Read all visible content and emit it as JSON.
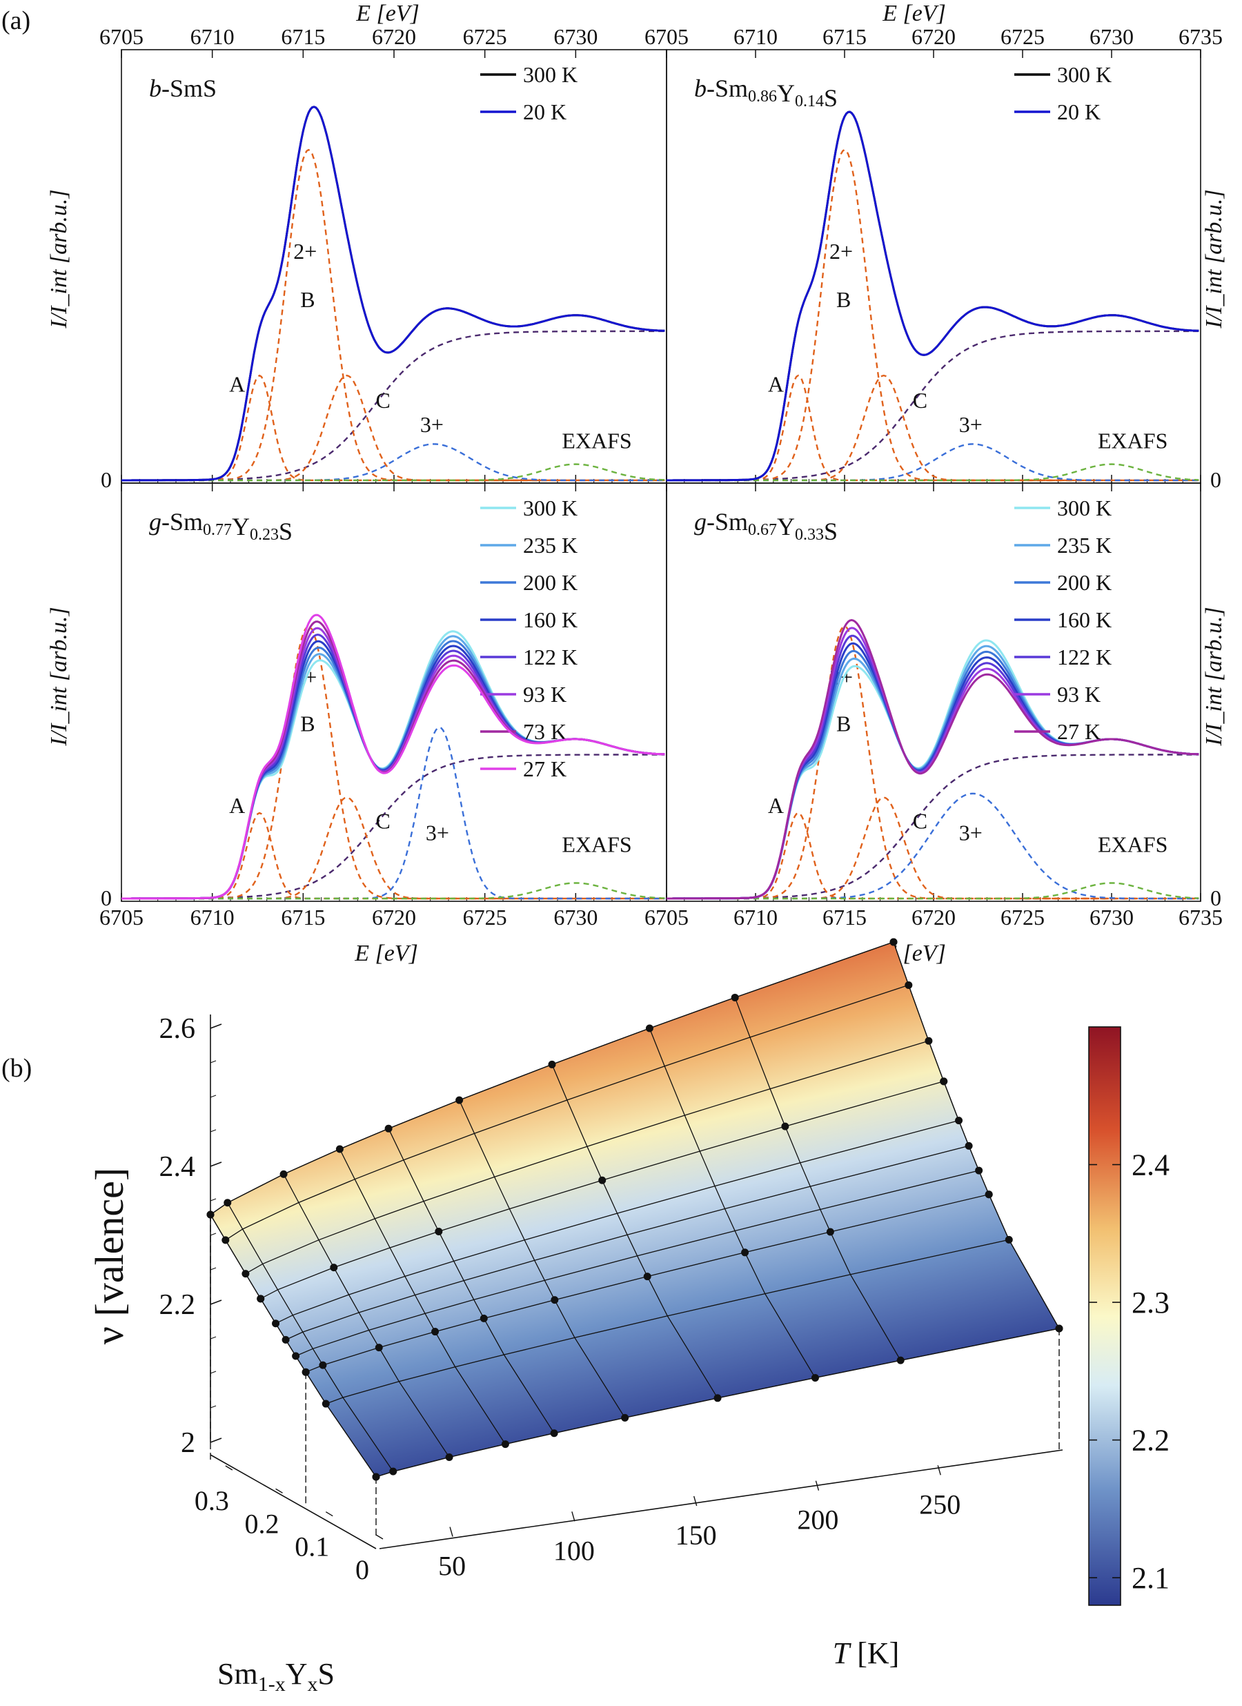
{
  "panel_a_label": "(a)",
  "panel_b_label": "(b)",
  "spectra": {
    "x_axis_label": "E [eV]",
    "y_axis_label": "I/I_int [arb.u.]",
    "zero_label": "0",
    "left_ticks": [
      "6705",
      "6710",
      "6715",
      "6720",
      "6725",
      "6730"
    ],
    "right_ticks": [
      "6705",
      "6710",
      "6715",
      "6720",
      "6725",
      "6730",
      "6735"
    ],
    "component_labels": {
      "A": "A",
      "B": "B",
      "C": "C",
      "div": "2+",
      "tri": "3+",
      "exafs": "EXAFS"
    },
    "colors": {
      "component": "#e0611b",
      "trivalent": "#3a6fd8",
      "exafs": "#6cb33f",
      "edge": "#4b2a6e"
    }
  },
  "chart_data": [
    {
      "type": "line",
      "title": "b-SmS",
      "xlim": [
        6705,
        6735
      ],
      "ylim": [
        0,
        1
      ],
      "series": [
        {
          "name": "300 K",
          "color": "#000000"
        },
        {
          "name": "20 K",
          "color": "#1515d0"
        }
      ],
      "components": {
        "A": 6712.6,
        "B": 6715.3,
        "C": 6717.4,
        "trivalent": 6722.2,
        "exafs": 6730.0
      }
    },
    {
      "type": "line",
      "title": "b-Sm0.86Y0.14S",
      "xlim": [
        6705,
        6735
      ],
      "ylim": [
        0,
        1
      ],
      "series": [
        {
          "name": "300 K",
          "color": "#000000"
        },
        {
          "name": "20 K",
          "color": "#1515d0"
        }
      ],
      "components": {
        "A": 6712.4,
        "B": 6715.0,
        "C": 6717.2,
        "trivalent": 6722.2,
        "exafs": 6730.0
      }
    },
    {
      "type": "line",
      "title": "g-Sm0.77Y0.23S",
      "xlim": [
        6705,
        6735
      ],
      "ylim": [
        0,
        1
      ],
      "series": [
        {
          "name": "300 K",
          "color": "#8fe6f0"
        },
        {
          "name": "235 K",
          "color": "#5ea8e8"
        },
        {
          "name": "200 K",
          "color": "#3d78d8"
        },
        {
          "name": "160 K",
          "color": "#2a3ec8"
        },
        {
          "name": "122 K",
          "color": "#5a3ad8"
        },
        {
          "name": "93 K",
          "color": "#9b3ae0"
        },
        {
          "name": "73 K",
          "color": "#a02aa0"
        },
        {
          "name": "27 K",
          "color": "#e040e8"
        }
      ],
      "components": {
        "A": 6712.6,
        "B": 6715.3,
        "C": 6717.4,
        "trivalent": 6722.5,
        "exafs": 6730.0
      }
    },
    {
      "type": "line",
      "title": "g-Sm0.67Y0.33S",
      "xlim": [
        6705,
        6735
      ],
      "ylim": [
        0,
        1
      ],
      "series": [
        {
          "name": "300 K",
          "color": "#8fe6f0"
        },
        {
          "name": "235 K",
          "color": "#5ea8e8"
        },
        {
          "name": "200 K",
          "color": "#3d78d8"
        },
        {
          "name": "160 K",
          "color": "#2a3ec8"
        },
        {
          "name": "122 K",
          "color": "#5a3ad8"
        },
        {
          "name": "93 K",
          "color": "#9b3ae0"
        },
        {
          "name": "27 K",
          "color": "#a02aa0"
        }
      ],
      "components": {
        "A": 6712.4,
        "B": 6715.0,
        "C": 6717.2,
        "trivalent": 6722.2,
        "exafs": 6730.0
      }
    },
    {
      "type": "surface",
      "zlabel": "ν [valence]",
      "xlabel": "Sm1-xYxS",
      "ylabel": "T [K]",
      "zlim": [
        2.0,
        2.6
      ],
      "z_ticks": [
        "2",
        "2.2",
        "2.4",
        "2.6"
      ],
      "x_ticks": [
        "0.3",
        "0.2",
        "0.1",
        "0"
      ],
      "y_ticks": [
        "50",
        "100",
        "150",
        "200",
        "250"
      ],
      "colorbar": {
        "ticks": [
          "2.4",
          "2.3",
          "2.2",
          "2.1"
        ],
        "range": [
          2.08,
          2.5
        ]
      },
      "x": [
        0.0,
        0.1,
        0.14,
        0.16,
        0.18,
        0.2,
        0.23,
        0.26,
        0.3,
        0.33
      ],
      "T": [
        20,
        27,
        50,
        73,
        93,
        122,
        160,
        200,
        235,
        300
      ],
      "z_corner_values": {
        "x0_Tlow": 2.06,
        "x0_Thigh": 2.15,
        "x033_Tlow": 2.33,
        "x033_Thigh": 2.6
      }
    }
  ]
}
